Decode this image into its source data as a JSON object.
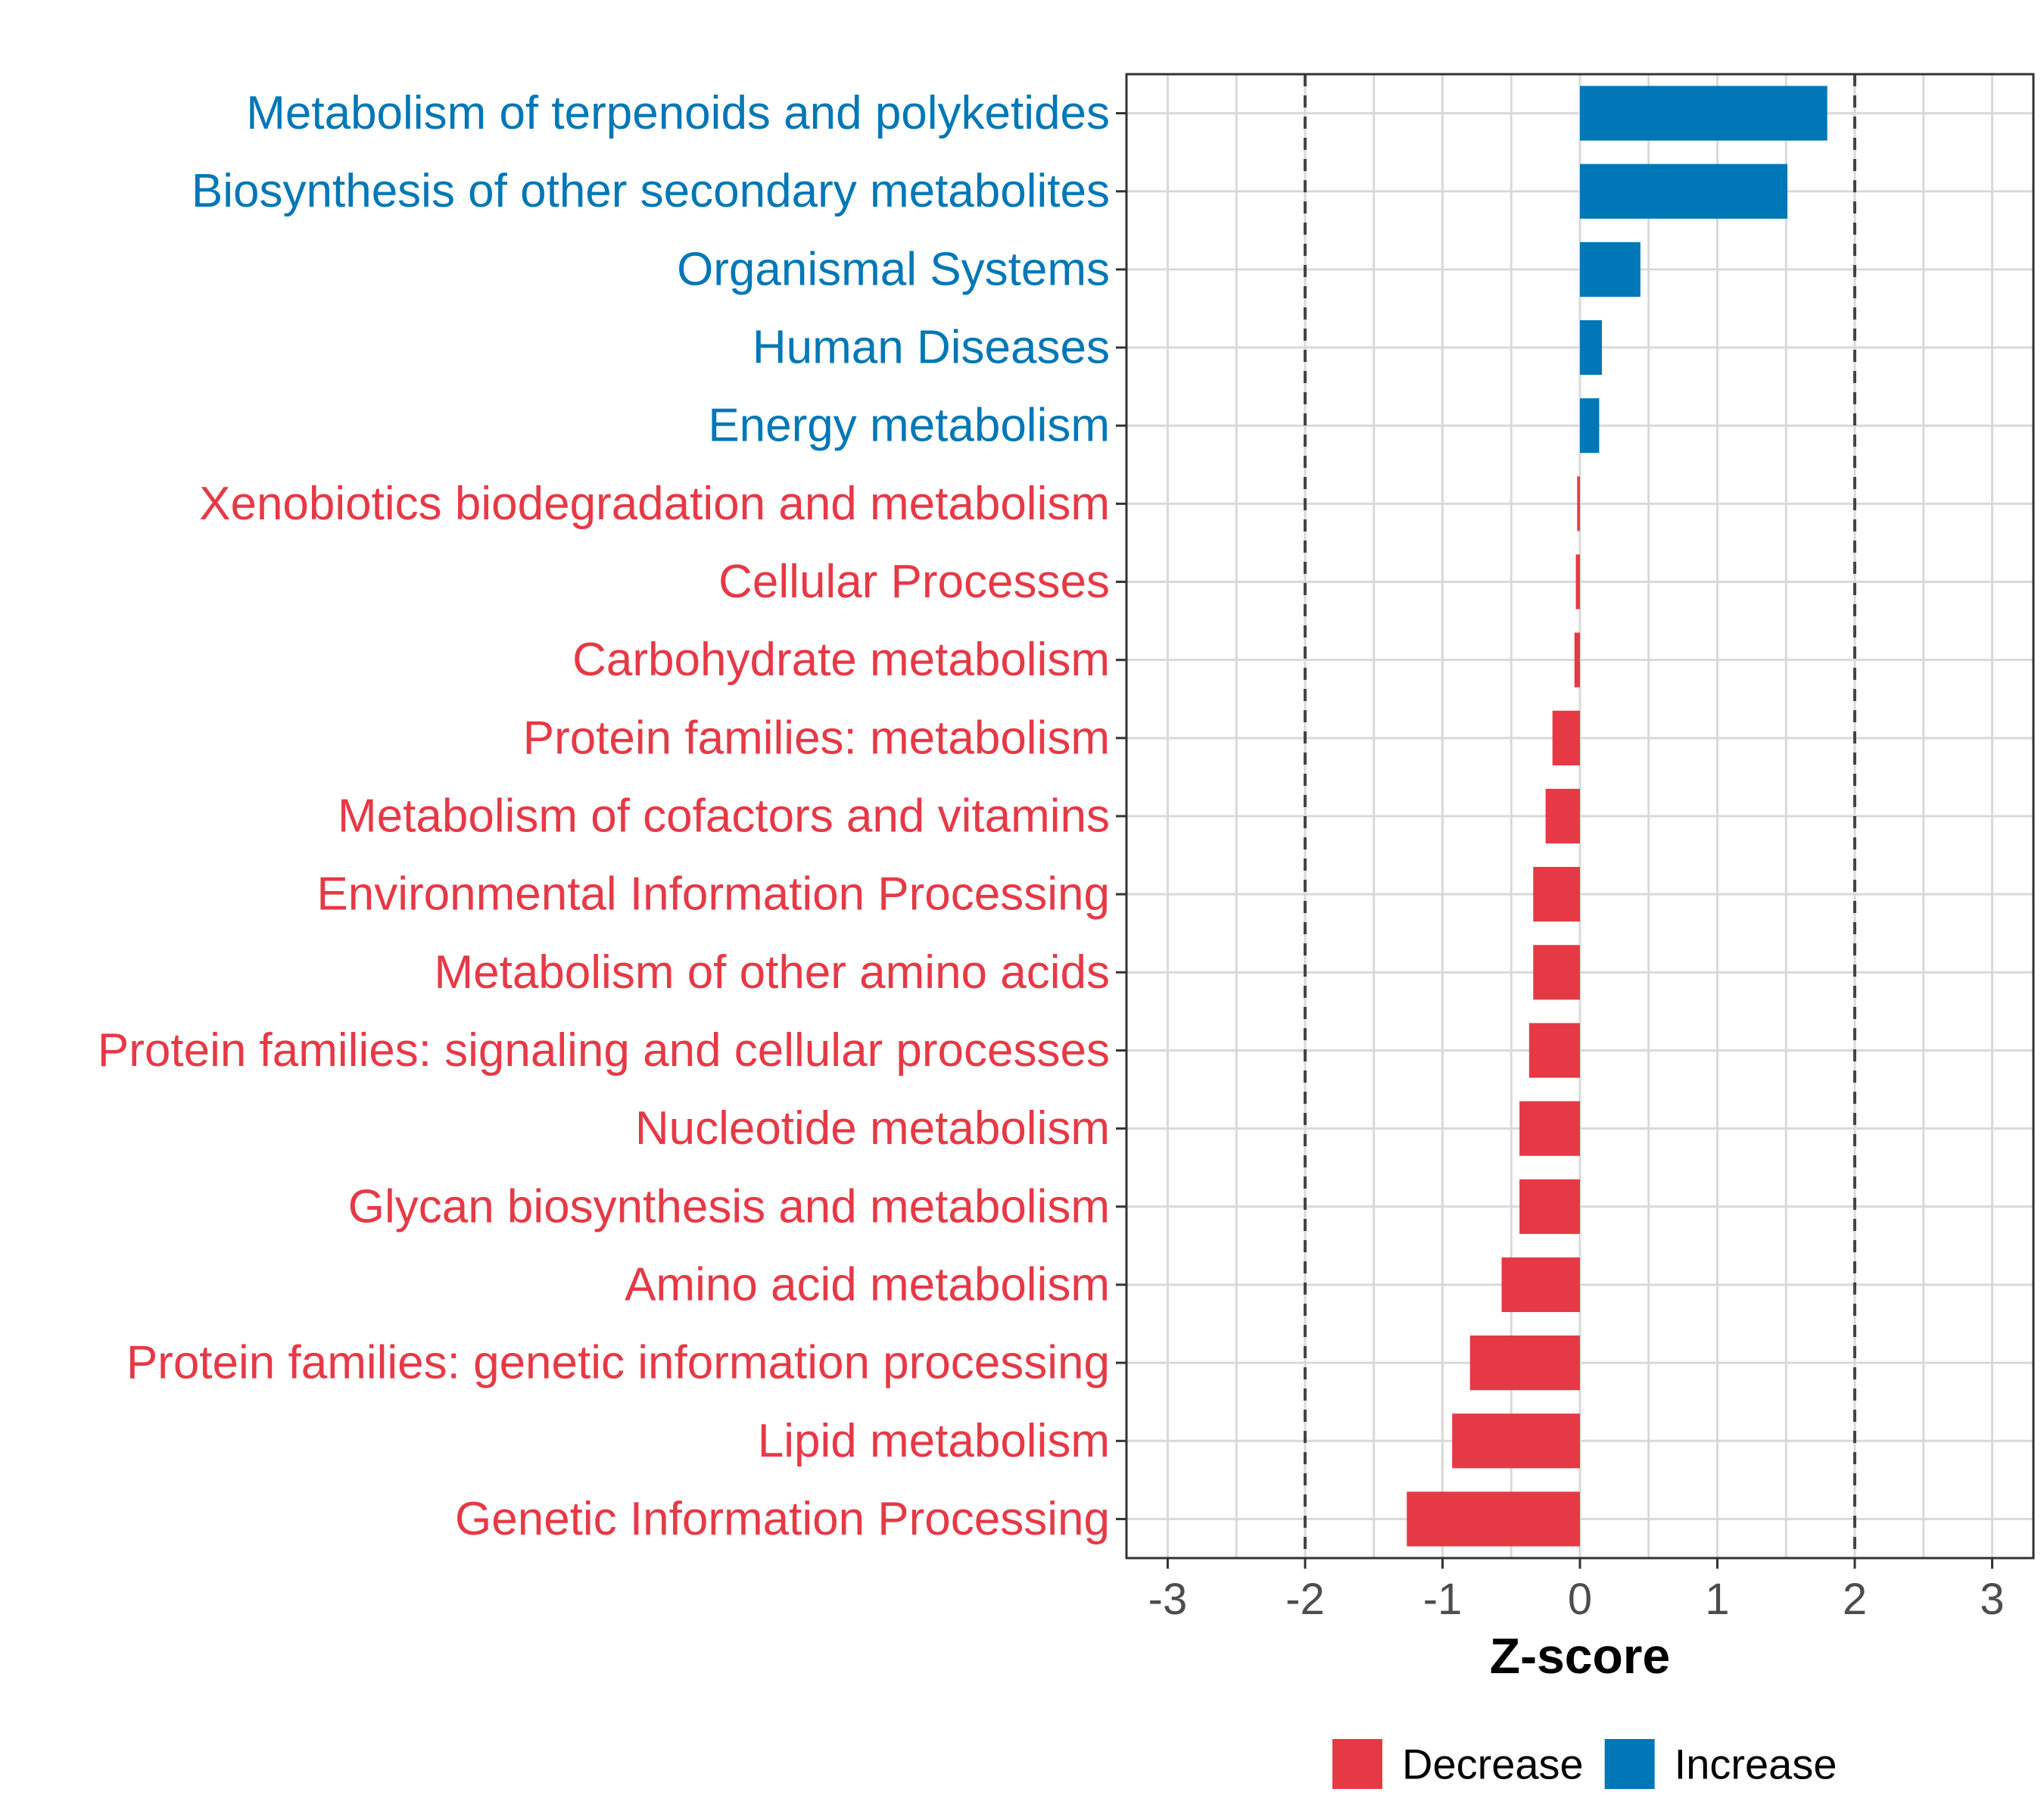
{
  "chart_data": {
    "type": "bar",
    "orientation": "horizontal",
    "title": "",
    "xlabel": "Z-score",
    "ylabel": "",
    "xlim": [
      -3,
      3
    ],
    "xticks": [
      -3,
      -2,
      -1,
      0,
      1,
      2,
      3
    ],
    "xtick_labels": [
      "-3",
      "-2",
      "-1",
      "0",
      "1",
      "2",
      "3"
    ],
    "reference_lines": [
      -2,
      2
    ],
    "grid": true,
    "colors": {
      "Decrease": "#e63946",
      "Increase": "#0077b6"
    },
    "legend": {
      "placement": "bottom",
      "entries": [
        {
          "label": "Decrease",
          "color": "#e63946"
        },
        {
          "label": "Increase",
          "color": "#0077b6"
        }
      ]
    },
    "categories": [
      "Metabolism of terpenoids and polyketides",
      "Biosynthesis of other secondary metabolites",
      "Organismal Systems",
      "Human Diseases",
      "Energy metabolism",
      "Xenobiotics biodegradation and metabolism",
      "Cellular Processes",
      "Carbohydrate metabolism",
      "Protein families: metabolism",
      "Metabolism of cofactors and vitamins",
      "Environmental Information Processing",
      "Metabolism of other amino acids",
      "Protein families: signaling and cellular processes",
      "Nucleotide metabolism",
      "Glycan biosynthesis and metabolism",
      "Amino acid metabolism",
      "Protein families: genetic information processing",
      "Lipid metabolism",
      "Genetic Information Processing"
    ],
    "values": [
      1.8,
      1.51,
      0.44,
      0.16,
      0.14,
      -0.02,
      -0.03,
      -0.04,
      -0.2,
      -0.25,
      -0.34,
      -0.34,
      -0.37,
      -0.44,
      -0.44,
      -0.57,
      -0.8,
      -0.93,
      -1.26
    ],
    "groups": [
      "Increase",
      "Increase",
      "Increase",
      "Increase",
      "Increase",
      "Decrease",
      "Decrease",
      "Decrease",
      "Decrease",
      "Decrease",
      "Decrease",
      "Decrease",
      "Decrease",
      "Decrease",
      "Decrease",
      "Decrease",
      "Decrease",
      "Decrease",
      "Decrease"
    ]
  }
}
